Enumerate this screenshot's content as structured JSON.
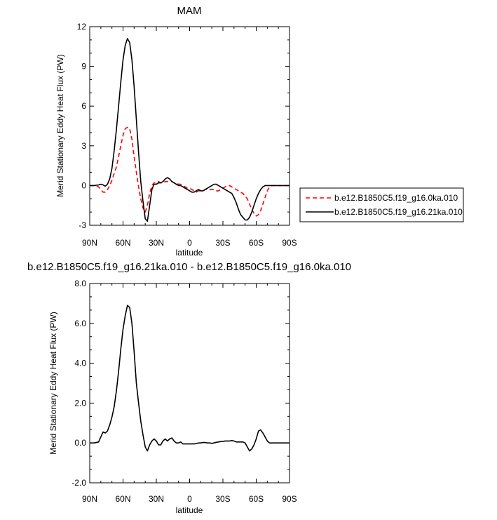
{
  "chart_data": [
    {
      "type": "line",
      "title": "MAM",
      "xlabel": "latitude",
      "ylabel": "Merid Stationary Eddy Heat Flux (PW)",
      "xlim": [
        90,
        -90
      ],
      "ylim": [
        -3,
        12
      ],
      "yticks": [
        -3,
        0,
        3,
        6,
        9,
        12
      ],
      "ytick_labels": [
        "-3",
        "0",
        "3",
        "6",
        "9",
        "12"
      ],
      "xticks": [
        90,
        60,
        30,
        0,
        -30,
        -60,
        -90
      ],
      "xtick_labels": [
        "90N",
        "60N",
        "30N",
        "0",
        "30S",
        "60S",
        "90S"
      ],
      "legend_position": "right",
      "series": [
        {
          "name": "b.e12.B1850C5.f19_g16.0ka.010",
          "color": "#ff0000",
          "dash": "dashed",
          "x": [
            90,
            86,
            82,
            80,
            78,
            76,
            74,
            72,
            70,
            68,
            66,
            64,
            62,
            60,
            58,
            56,
            54,
            52,
            50,
            48,
            46,
            44,
            42,
            40,
            38,
            36,
            34,
            32,
            30,
            28,
            26,
            24,
            22,
            20,
            18,
            16,
            14,
            12,
            10,
            8,
            6,
            4,
            2,
            0,
            -2,
            -4,
            -6,
            -8,
            -10,
            -12,
            -14,
            -16,
            -18,
            -20,
            -22,
            -24,
            -26,
            -28,
            -30,
            -32,
            -34,
            -36,
            -38,
            -40,
            -42,
            -44,
            -46,
            -48,
            -50,
            -52,
            -54,
            -56,
            -58,
            -60,
            -62,
            -64,
            -66,
            -68,
            -70,
            -72,
            -74,
            -76,
            -78,
            -80,
            -82,
            -84,
            -86,
            -88,
            -90
          ],
          "y": [
            0,
            0,
            -0.1,
            -0.3,
            -0.5,
            -0.5,
            -0.3,
            0,
            0.4,
            0.9,
            1.4,
            2.2,
            3.0,
            3.8,
            4.3,
            4.4,
            4.3,
            3.5,
            2.2,
            1.0,
            -0.1,
            -1.0,
            -1.7,
            -2.0,
            -1.5,
            -0.6,
            0,
            0.2,
            0.2,
            0.3,
            0.2,
            0.2,
            0.3,
            0.3,
            0.3,
            0.3,
            0.2,
            0.2,
            0.1,
            0.1,
            0,
            -0.1,
            -0.2,
            -0.2,
            -0.3,
            -0.4,
            -0.5,
            -0.4,
            -0.4,
            -0.4,
            -0.3,
            -0.3,
            -0.3,
            -0.3,
            -0.3,
            -0.4,
            -0.4,
            -0.3,
            -0.2,
            -0.1,
            0,
            0,
            -0.1,
            -0.2,
            -0.3,
            -0.4,
            -0.5,
            -0.6,
            -0.8,
            -1.0,
            -1.4,
            -1.8,
            -2.1,
            -2.3,
            -2.2,
            -1.9,
            -1.4,
            -0.9,
            -0.4,
            -0.1,
            0,
            0,
            0,
            0,
            0,
            0,
            0,
            0,
            0
          ]
        },
        {
          "name": "b.e12.B1850C5.f19_g16.21ka.010",
          "color": "#000000",
          "dash": "solid",
          "x": [
            90,
            86,
            82,
            80,
            78,
            76,
            74,
            72,
            70,
            68,
            66,
            64,
            62,
            60,
            58,
            56,
            54,
            52,
            50,
            48,
            46,
            44,
            42,
            40,
            38,
            36,
            34,
            32,
            30,
            28,
            26,
            24,
            22,
            20,
            18,
            16,
            14,
            12,
            10,
            8,
            6,
            4,
            2,
            0,
            -2,
            -4,
            -6,
            -8,
            -10,
            -12,
            -14,
            -16,
            -18,
            -20,
            -22,
            -24,
            -26,
            -28,
            -30,
            -32,
            -34,
            -36,
            -38,
            -40,
            -42,
            -44,
            -46,
            -48,
            -50,
            -52,
            -54,
            -56,
            -58,
            -60,
            -62,
            -64,
            -66,
            -68,
            -70,
            -72,
            -74,
            -76,
            -78,
            -80,
            -82,
            -84,
            -86,
            -88,
            -90
          ],
          "y": [
            0,
            0,
            0.05,
            0.1,
            0.05,
            -0.05,
            0.1,
            0.5,
            1.3,
            2.6,
            4.2,
            6.0,
            7.8,
            9.5,
            10.6,
            11.1,
            10.8,
            9.5,
            7.5,
            5.0,
            2.5,
            0.3,
            -1.2,
            -2.5,
            -2.7,
            -1.5,
            -0.3,
            0.1,
            0.1,
            0.2,
            0.2,
            0.3,
            0.5,
            0.6,
            0.5,
            0.3,
            0.2,
            0.1,
            0,
            0,
            -0.1,
            -0.2,
            -0.3,
            -0.4,
            -0.5,
            -0.5,
            -0.4,
            -0.3,
            -0.4,
            -0.4,
            -0.3,
            -0.2,
            -0.1,
            0,
            0.1,
            0.1,
            0,
            -0.1,
            -0.2,
            -0.3,
            -0.4,
            -0.5,
            -0.6,
            -0.9,
            -1.3,
            -1.8,
            -2.2,
            -2.4,
            -2.6,
            -2.6,
            -2.4,
            -2.0,
            -1.5,
            -1.0,
            -0.6,
            -0.3,
            -0.1,
            0,
            0,
            0,
            0,
            0,
            0,
            0,
            0,
            0,
            0,
            0,
            0
          ]
        }
      ]
    },
    {
      "type": "line",
      "title": "b.e12.B1850C5.f19_g16.21ka.010 - b.e12.B1850C5.f19_g16.0ka.010",
      "xlabel": "latitude",
      "ylabel": "Merid Stationary Eddy Heat Flux (PW)",
      "xlim": [
        90,
        -90
      ],
      "ylim": [
        -2,
        8
      ],
      "yticks": [
        -2,
        0,
        2,
        4,
        6,
        8
      ],
      "ytick_labels": [
        "-2.0",
        "0.0",
        "2.0",
        "4.0",
        "6.0",
        "8.0"
      ],
      "xticks": [
        90,
        60,
        30,
        0,
        -30,
        -60,
        -90
      ],
      "xtick_labels": [
        "90N",
        "60N",
        "30N",
        "0",
        "30S",
        "60S",
        "90S"
      ],
      "series": [
        {
          "color": "#000000",
          "dash": "solid",
          "x": [
            90,
            86,
            82,
            80,
            78,
            76,
            74,
            72,
            70,
            68,
            66,
            64,
            62,
            60,
            58,
            56,
            54,
            52,
            50,
            48,
            46,
            44,
            42,
            40,
            38,
            36,
            34,
            32,
            30,
            28,
            26,
            24,
            22,
            20,
            18,
            16,
            14,
            12,
            10,
            8,
            6,
            4,
            2,
            0,
            -2,
            -4,
            -6,
            -8,
            -10,
            -12,
            -14,
            -16,
            -18,
            -20,
            -22,
            -24,
            -26,
            -28,
            -30,
            -32,
            -34,
            -36,
            -38,
            -40,
            -42,
            -44,
            -46,
            -48,
            -50,
            -52,
            -54,
            -56,
            -58,
            -60,
            -62,
            -64,
            -66,
            -68,
            -70,
            -72,
            -74,
            -76,
            -78,
            -80,
            -82,
            -84,
            -86,
            -88,
            -90
          ],
          "y": [
            0,
            0,
            0.05,
            0.3,
            0.55,
            0.5,
            0.6,
            0.9,
            1.3,
            1.8,
            2.6,
            3.6,
            4.7,
            5.7,
            6.4,
            6.9,
            6.8,
            6.0,
            4.6,
            3.0,
            2.0,
            1.1,
            0.4,
            -0.2,
            -0.4,
            -0.1,
            0.1,
            0.2,
            0.1,
            -0.1,
            -0.1,
            0.1,
            0.2,
            0.1,
            0.2,
            0.25,
            0.1,
            0,
            0,
            0.05,
            -0.05,
            -0.05,
            -0.05,
            -0.05,
            -0.05,
            -0.05,
            -0.03,
            0,
            0,
            0.02,
            0.02,
            0,
            0,
            -0.02,
            0,
            0.03,
            0.05,
            0.07,
            0.08,
            0.1,
            0.1,
            0.1,
            0.12,
            0.1,
            0.05,
            0.05,
            0.05,
            0.05,
            0,
            -0.2,
            -0.4,
            -0.3,
            -0.1,
            0.2,
            0.6,
            0.65,
            0.5,
            0.3,
            0.1,
            0,
            0,
            0,
            0,
            0,
            0,
            0,
            0,
            0,
            0
          ]
        }
      ]
    }
  ]
}
